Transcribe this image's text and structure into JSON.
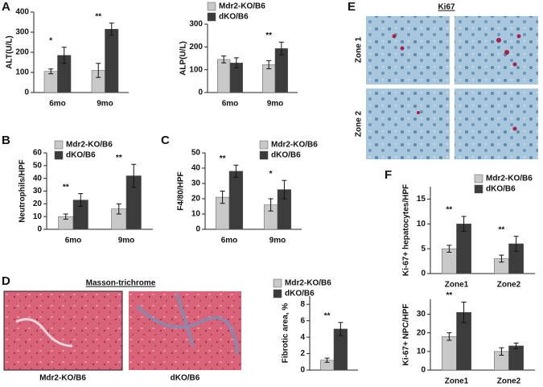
{
  "figure": {
    "panel_labels": [
      "A",
      "B",
      "C",
      "D",
      "E",
      "F"
    ],
    "masson_title": "Masson-trichrome",
    "masson_captions": [
      "Mdr2-KO/B6",
      "dKO/B6"
    ],
    "ki67_title": "Ki67",
    "zones": [
      "Zone 1",
      "Zone 2"
    ]
  },
  "chart_data": [
    {
      "type": "bar",
      "y_label": "ALT(U/L)",
      "categories": [
        "6mo",
        "9mo"
      ],
      "ylim": [
        0,
        400
      ],
      "yticks": [
        0,
        100,
        200,
        300,
        400
      ],
      "legend": false,
      "significance": [
        "*",
        "**"
      ],
      "series": [
        {
          "name": "Mdr2-KO/B6",
          "color": "#c8c8c8",
          "values": [
            105,
            110
          ],
          "errors": [
            12,
            35
          ]
        },
        {
          "name": "dKO/B6",
          "color": "#3c3c3c",
          "values": [
            185,
            315
          ],
          "errors": [
            40,
            30
          ]
        }
      ]
    },
    {
      "type": "bar",
      "y_label": "ALP(U/L)",
      "categories": [
        "6mo",
        "9mo"
      ],
      "ylim": [
        0,
        300
      ],
      "yticks": [
        0,
        100,
        200,
        300
      ],
      "legend": true,
      "significance": [
        null,
        "**"
      ],
      "series": [
        {
          "name": "Mdr2-KO/B6",
          "color": "#c8c8c8",
          "values": [
            145,
            122
          ],
          "errors": [
            15,
            18
          ]
        },
        {
          "name": "dKO/B6",
          "color": "#3c3c3c",
          "values": [
            130,
            193
          ],
          "errors": [
            22,
            28
          ]
        }
      ]
    },
    {
      "type": "bar",
      "y_label": "Neutrophils/HPF",
      "categories": [
        "6mo",
        "9mo"
      ],
      "ylim": [
        0,
        60
      ],
      "yticks": [
        0,
        10,
        20,
        30,
        40,
        50,
        60
      ],
      "legend": true,
      "significance": [
        "**",
        "**"
      ],
      "series": [
        {
          "name": "Mdr2-KO/B6",
          "color": "#c8c8c8",
          "values": [
            10,
            16
          ],
          "errors": [
            2,
            4
          ]
        },
        {
          "name": "dKO/B6",
          "color": "#3c3c3c",
          "values": [
            23,
            42
          ],
          "errors": [
            5,
            9
          ]
        }
      ]
    },
    {
      "type": "bar",
      "y_label": "F4/80/HPF",
      "categories": [
        "6mo",
        "9mo"
      ],
      "ylim": [
        0,
        50
      ],
      "yticks": [
        0,
        10,
        20,
        30,
        40,
        50
      ],
      "legend": true,
      "significance": [
        "**",
        "*"
      ],
      "series": [
        {
          "name": "Mdr2-KO/B6",
          "color": "#c8c8c8",
          "values": [
            21,
            16
          ],
          "errors": [
            4,
            4
          ]
        },
        {
          "name": "dKO/B6",
          "color": "#3c3c3c",
          "values": [
            38,
            26
          ],
          "errors": [
            4,
            6
          ]
        }
      ]
    },
    {
      "type": "bar",
      "y_label": "Fibrotic  area, %",
      "categories": [
        null
      ],
      "ylim": [
        0,
        9
      ],
      "yticks": [
        0,
        2,
        4,
        6,
        8
      ],
      "legend": true,
      "significance": [
        "**"
      ],
      "series": [
        {
          "name": "Mdr2-KO/B6",
          "color": "#c8c8c8",
          "values": [
            1.2
          ],
          "errors": [
            0.25
          ]
        },
        {
          "name": "dKO/B6",
          "color": "#3c3c3c",
          "values": [
            5
          ],
          "errors": [
            0.8
          ]
        }
      ]
    },
    {
      "type": "bar",
      "y_label": "Ki-67+ hepatocytes/HPF",
      "categories": [
        "Zone1",
        "Zone2"
      ],
      "ylim": [
        0,
        17.5
      ],
      "yticks": [
        0,
        5,
        10,
        15
      ],
      "legend": true,
      "significance": [
        "**",
        "**"
      ],
      "series": [
        {
          "name": "Mdr2-KO/B6",
          "color": "#c8c8c8",
          "values": [
            5,
            3
          ],
          "errors": [
            0.7,
            0.7
          ]
        },
        {
          "name": "dKO/B6",
          "color": "#3c3c3c",
          "values": [
            10,
            6
          ],
          "errors": [
            1.5,
            1.5
          ]
        }
      ]
    },
    {
      "type": "bar",
      "y_label": "Ki-67+ NPC/HPF",
      "categories": [
        "Zone1",
        "Zone2"
      ],
      "ylim": [
        0,
        38
      ],
      "yticks": [
        0,
        10,
        20,
        30
      ],
      "legend": false,
      "significance": [
        "**",
        null
      ],
      "series": [
        {
          "name": "Mdr2-KO/B6",
          "color": "#c8c8c8",
          "values": [
            18,
            10
          ],
          "errors": [
            2,
            2
          ]
        },
        {
          "name": "dKO/B6",
          "color": "#3c3c3c",
          "values": [
            31,
            13
          ],
          "errors": [
            5.5,
            1.5
          ]
        }
      ]
    }
  ]
}
